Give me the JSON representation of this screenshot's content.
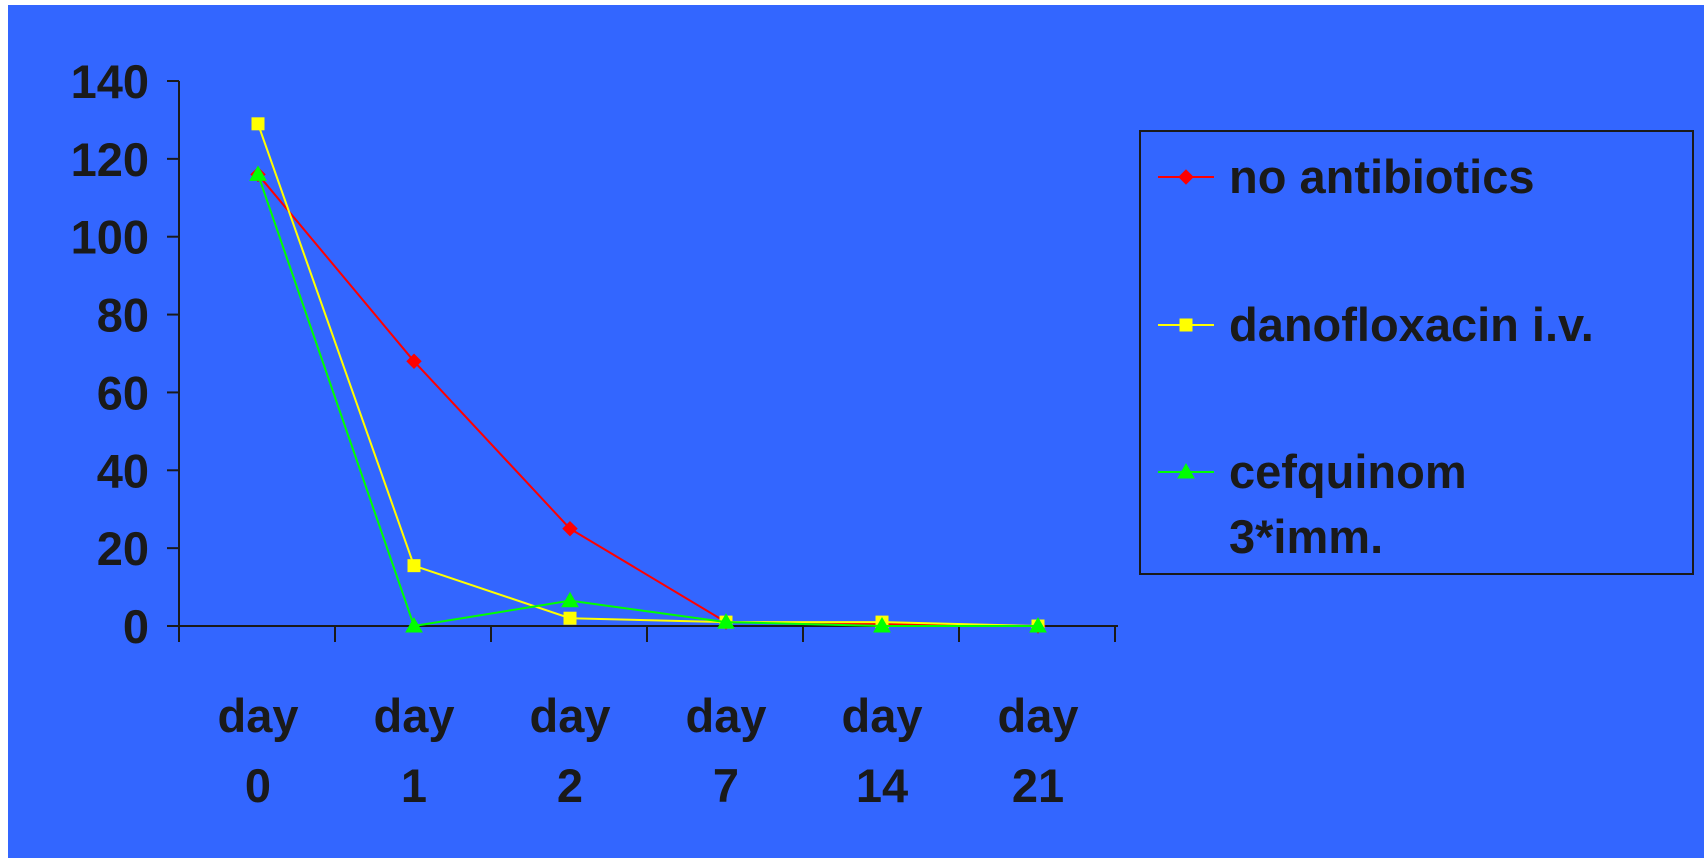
{
  "chart_data": {
    "type": "line",
    "title": "",
    "xlabel": "",
    "ylabel": "",
    "categories": [
      [
        "day",
        "0"
      ],
      [
        "day",
        "1"
      ],
      [
        "day",
        "2"
      ],
      [
        "day",
        "7"
      ],
      [
        "day",
        "14"
      ],
      [
        "day",
        "21"
      ]
    ],
    "ylim": [
      0,
      140
    ],
    "yticks": [
      "0",
      "20",
      "40",
      "60",
      "80",
      "100",
      "120",
      "140"
    ],
    "grid": false,
    "legend_position": "right",
    "series": [
      {
        "name": [
          "no antibiotics"
        ],
        "marker": "diamond",
        "color": "#ff0000",
        "values": [
          116,
          68,
          25,
          1,
          0.5,
          0
        ]
      },
      {
        "name": [
          "danofloxacin i.v."
        ],
        "marker": "square",
        "color": "#ffff00",
        "values": [
          129,
          15.5,
          2,
          1,
          1,
          0
        ]
      },
      {
        "name": [
          "cefquinom",
          "3*imm."
        ],
        "marker": "triangle",
        "color": "#00ff00",
        "values": [
          116,
          0,
          6.5,
          1,
          0,
          0
        ]
      }
    ]
  },
  "colors": {
    "background": "#3366ff",
    "axis": "#1a1a1a",
    "text": "#1a1a1a"
  }
}
